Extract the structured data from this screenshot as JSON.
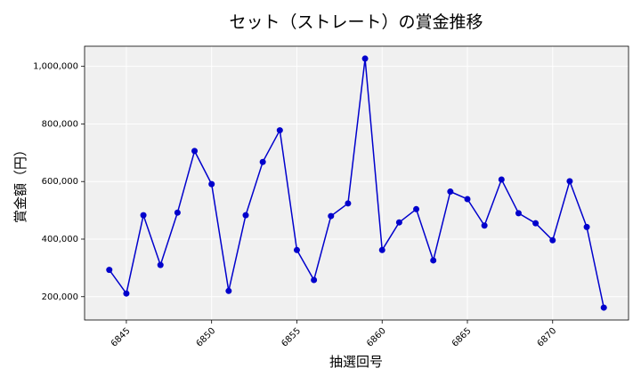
{
  "chart_data": {
    "type": "line",
    "title": "セット（ストレート）の賞金推移",
    "xlabel": "抽選回号",
    "ylabel": "賞金額（円）",
    "x": [
      6844,
      6845,
      6846,
      6847,
      6848,
      6849,
      6850,
      6851,
      6852,
      6853,
      6854,
      6855,
      6856,
      6857,
      6858,
      6859,
      6860,
      6861,
      6862,
      6863,
      6864,
      6865,
      6866,
      6867,
      6868,
      6869,
      6870,
      6871,
      6872,
      6873
    ],
    "series": [
      {
        "values": [
          293000,
          211000,
          483000,
          310000,
          492000,
          706000,
          591000,
          220000,
          483000,
          668000,
          778000,
          362000,
          258000,
          480000,
          524000,
          1027000,
          362000,
          458000,
          504000,
          326000,
          565000,
          539000,
          447000,
          607000,
          490000,
          455000,
          396000,
          601000,
          442000,
          162000
        ]
      }
    ],
    "xticks": [
      6845,
      6850,
      6855,
      6860,
      6865,
      6870
    ],
    "xtick_labels": [
      "6845",
      "6850",
      "6855",
      "6860",
      "6865",
      "6870"
    ],
    "yticks": [
      200000,
      400000,
      600000,
      800000,
      1000000
    ],
    "ytick_labels": [
      "200,000",
      "400,000",
      "600,000",
      "800,000",
      "1,000,000"
    ],
    "xlim": [
      6842.55,
      6874.45
    ],
    "ylim": [
      119000,
      1070000
    ],
    "grid": true,
    "line_color": "#0000cc",
    "marker_color": "#0000cc",
    "plot_background": "#f0f0f0",
    "grid_color": "#ffffff"
  }
}
